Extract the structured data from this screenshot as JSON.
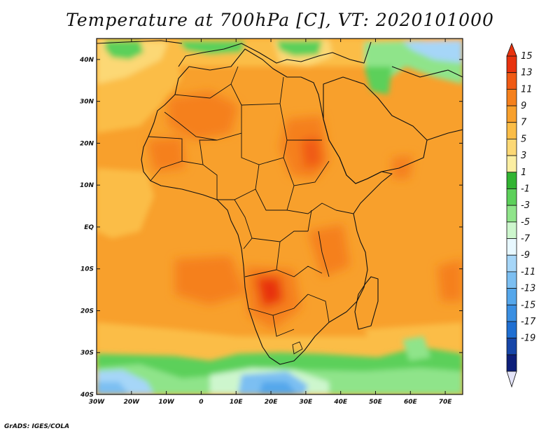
{
  "title": "Temperature at 700hPa [C], VT: 2020101000",
  "credit": "GrADS: IGES/COLA",
  "map": {
    "region": "Africa",
    "lon_range": [
      -30,
      75
    ],
    "lat_range": [
      -40,
      45
    ],
    "lon_ticks": [
      "30W",
      "20W",
      "10W",
      "0",
      "10E",
      "20E",
      "30E",
      "40E",
      "50E",
      "60E",
      "70E"
    ],
    "lat_ticks": [
      "40N",
      "30N",
      "20N",
      "10N",
      "EQ",
      "10S",
      "20S",
      "30S",
      "40S"
    ]
  },
  "colorbar": {
    "labels": [
      "15",
      "13",
      "11",
      "9",
      "7",
      "5",
      "3",
      "1",
      "-1",
      "-3",
      "-5",
      "-7",
      "-9",
      "-11",
      "-13",
      "-15",
      "-17",
      "-19"
    ],
    "colors": [
      "#e8320e",
      "#f05a14",
      "#f5801c",
      "#f8a02c",
      "#fbbd47",
      "#fcd875",
      "#fbeea2",
      "#32b432",
      "#5cd05a",
      "#8fe48a",
      "#cdf6cd",
      "#e8f8ff",
      "#a6d6f8",
      "#7cbff2",
      "#55a7eb",
      "#3a8fe2",
      "#1f6fd2",
      "#1646a8",
      "#0d1f7a"
    ]
  }
}
